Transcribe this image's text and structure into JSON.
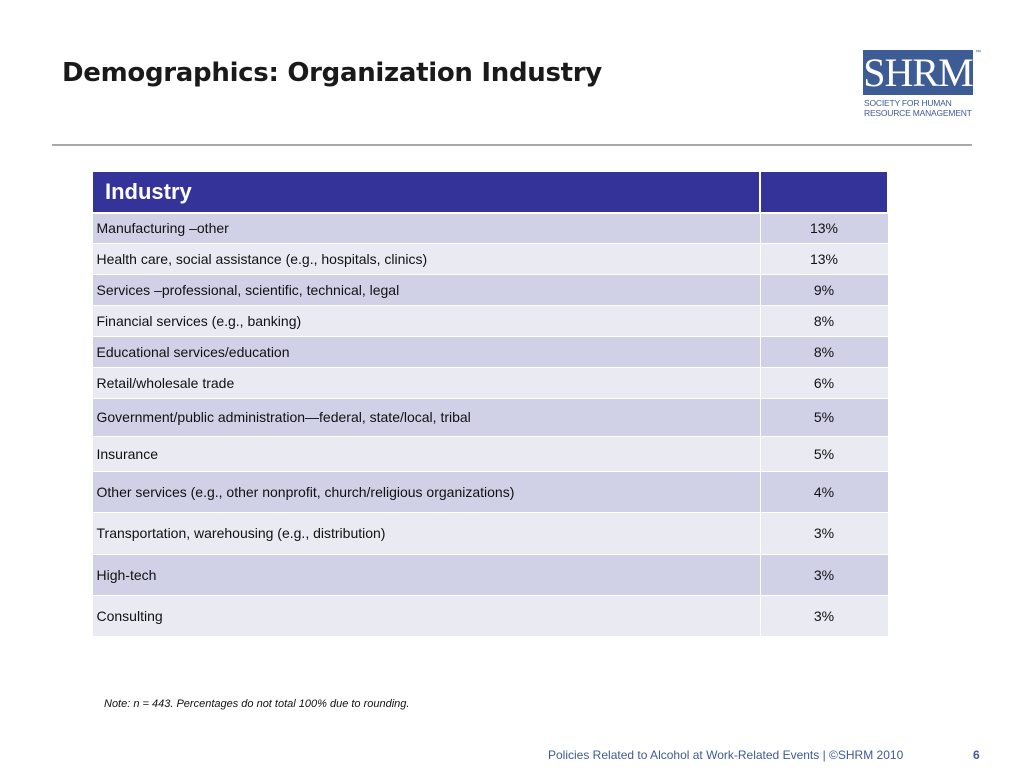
{
  "slide": {
    "title": "Demographics: Organization Industry",
    "logo_mark": "SHRM",
    "logo_text_line1": "SOCIETY FOR HUMAN",
    "logo_text_line2": "RESOURCE MANAGEMENT",
    "logo_tm": "™"
  },
  "table": {
    "header_label": "Industry",
    "header_value": "",
    "rows": [
      {
        "label": "Manufacturing –other",
        "value": "13%"
      },
      {
        "label": "Health care, social assistance (e.g., hospitals, clinics)",
        "value": "13%"
      },
      {
        "label": "Services –professional, scientific, technical, legal",
        "value": "9%"
      },
      {
        "label": "Financial services (e.g., banking)",
        "value": "8%"
      },
      {
        "label": "Educational services/education",
        "value": "8%"
      },
      {
        "label": "Retail/wholesale trade",
        "value": "6%"
      },
      {
        "label": "Government/public administration—federal, state/local, tribal",
        "value": "5%"
      },
      {
        "label": "Insurance",
        "value": "5%"
      },
      {
        "label": "Other services (e.g., other nonprofit, church/religious organizations)",
        "value": "4%"
      },
      {
        "label": "Transportation, warehousing (e.g., distribution)",
        "value": "3%"
      },
      {
        "label": "High-tech",
        "value": "3%"
      },
      {
        "label": "Consulting",
        "value": "3%"
      }
    ]
  },
  "note": "Note: n = 443. Percentages do not total 100% due to rounding.",
  "footer": {
    "text": "Policies Related to Alcohol at Work-Related Events | ©SHRM 2010",
    "page_number": "6"
  },
  "colors": {
    "header_bg": "#333399",
    "row_odd": "#d0d1e6",
    "row_even": "#e9eaf2",
    "brand": "#3d5b94"
  }
}
